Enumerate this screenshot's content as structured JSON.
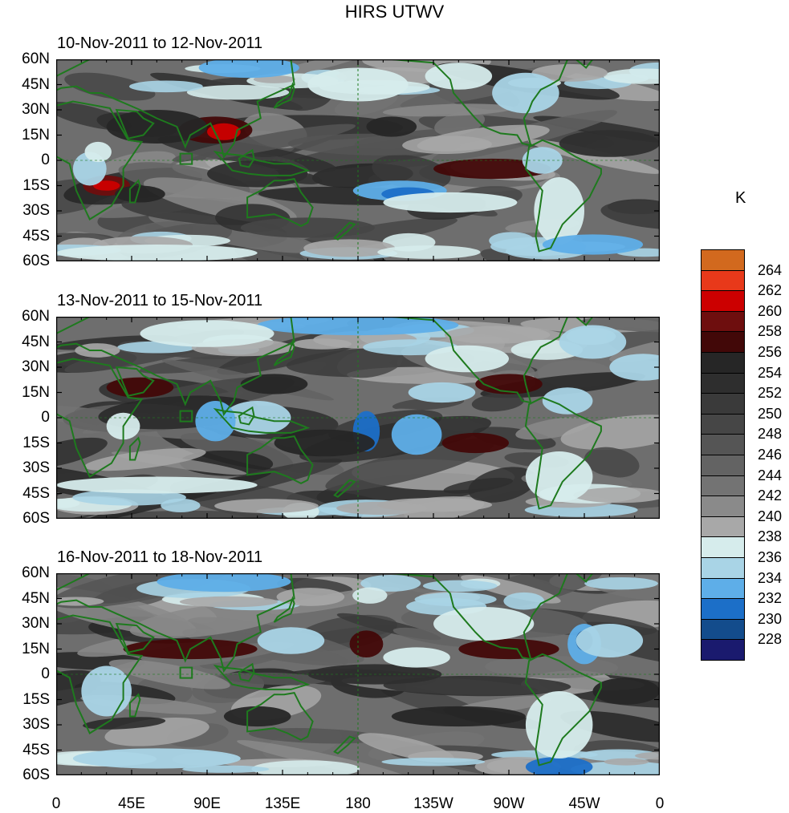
{
  "title": "HIRS UTWV",
  "panels": [
    {
      "title": "10-Nov-2011 to 12-Nov-2011"
    },
    {
      "title": "13-Nov-2011 to 15-Nov-2011"
    },
    {
      "title": "16-Nov-2011 to 18-Nov-2011"
    }
  ],
  "y_ticks": [
    "60N",
    "45N",
    "30N",
    "15N",
    "0",
    "15S",
    "30S",
    "45S",
    "60S"
  ],
  "x_ticks": [
    "0",
    "45E",
    "90E",
    "135E",
    "180",
    "135W",
    "90W",
    "45W",
    "0"
  ],
  "legend": {
    "unit": "K",
    "labels": [
      "264",
      "262",
      "260",
      "258",
      "256",
      "254",
      "252",
      "250",
      "248",
      "246",
      "244",
      "242",
      "240",
      "238",
      "236",
      "234",
      "232",
      "230",
      "228"
    ],
    "colors": [
      "#d2691e",
      "#e8391a",
      "#cc0000",
      "#6e0e0e",
      "#420808",
      "#262626",
      "#2e2e2e",
      "#3a3a3a",
      "#464646",
      "#555555",
      "#636363",
      "#737373",
      "#8a8a8a",
      "#a8a8a8",
      "#d6ecec",
      "#a9d4e6",
      "#5eaee8",
      "#1c6fc8",
      "#134c8c",
      "#1a1a6e"
    ]
  },
  "chart_data": {
    "type": "contour-map",
    "variable": "HIRS UTWV",
    "unit": "K",
    "levels": [
      228,
      230,
      232,
      234,
      236,
      238,
      240,
      242,
      244,
      246,
      248,
      250,
      252,
      254,
      256,
      258,
      260,
      262,
      264
    ],
    "lon_range": [
      0,
      360
    ],
    "lat_range": [
      -60,
      60
    ],
    "panels": [
      "10-Nov-2011 to 12-Nov-2011",
      "13-Nov-2011 to 15-Nov-2011",
      "16-Nov-2011 to 18-Nov-2011"
    ]
  }
}
